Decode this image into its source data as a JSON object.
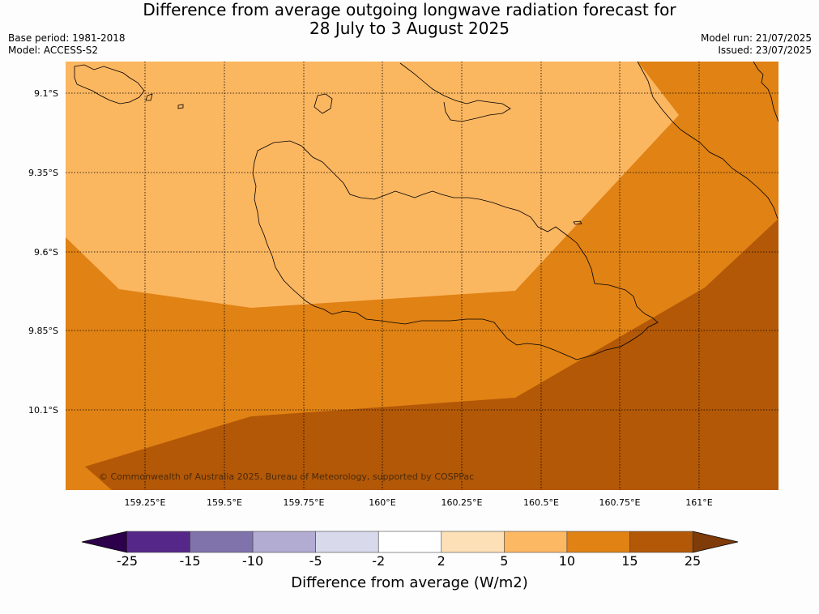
{
  "header": {
    "title_line1": "Difference from average outgoing longwave radiation forecast for",
    "title_line2": "28 July to 3 August 2025",
    "base_period": "Base period: 1981-2018",
    "model": "Model: ACCESS-S2",
    "model_run": "Model run: 21/07/2025",
    "issued": "Issued: 23/07/2025"
  },
  "map": {
    "lat_labels": [
      "9.1°S",
      "9.35°S",
      "9.6°S",
      "9.85°S",
      "10.1°S"
    ],
    "lon_labels": [
      "159.25°E",
      "159.5°E",
      "159.75°E",
      "160°E",
      "160.25°E",
      "160.5°E",
      "160.75°E",
      "161°E"
    ],
    "copyright": "© Commonwealth of Australia 2025, Bureau of Meteorology, supported by COSPPac",
    "colors": {
      "light": "#fbb660",
      "mid": "#e08214",
      "dark": "#b35806"
    }
  },
  "colorbar": {
    "title": "Difference from average (W/m2)",
    "labels": [
      "-25",
      "-15",
      "-10",
      "-5",
      "-2",
      "2",
      "5",
      "10",
      "15",
      "25"
    ],
    "colors": [
      "#542788",
      "#8073ac",
      "#b2abd2",
      "#d8daeb",
      "#ffffff",
      "#fee0b6",
      "#fdb863",
      "#e08214",
      "#b35806"
    ],
    "under_color": "#2d004b",
    "over_color": "#7f3b08"
  }
}
